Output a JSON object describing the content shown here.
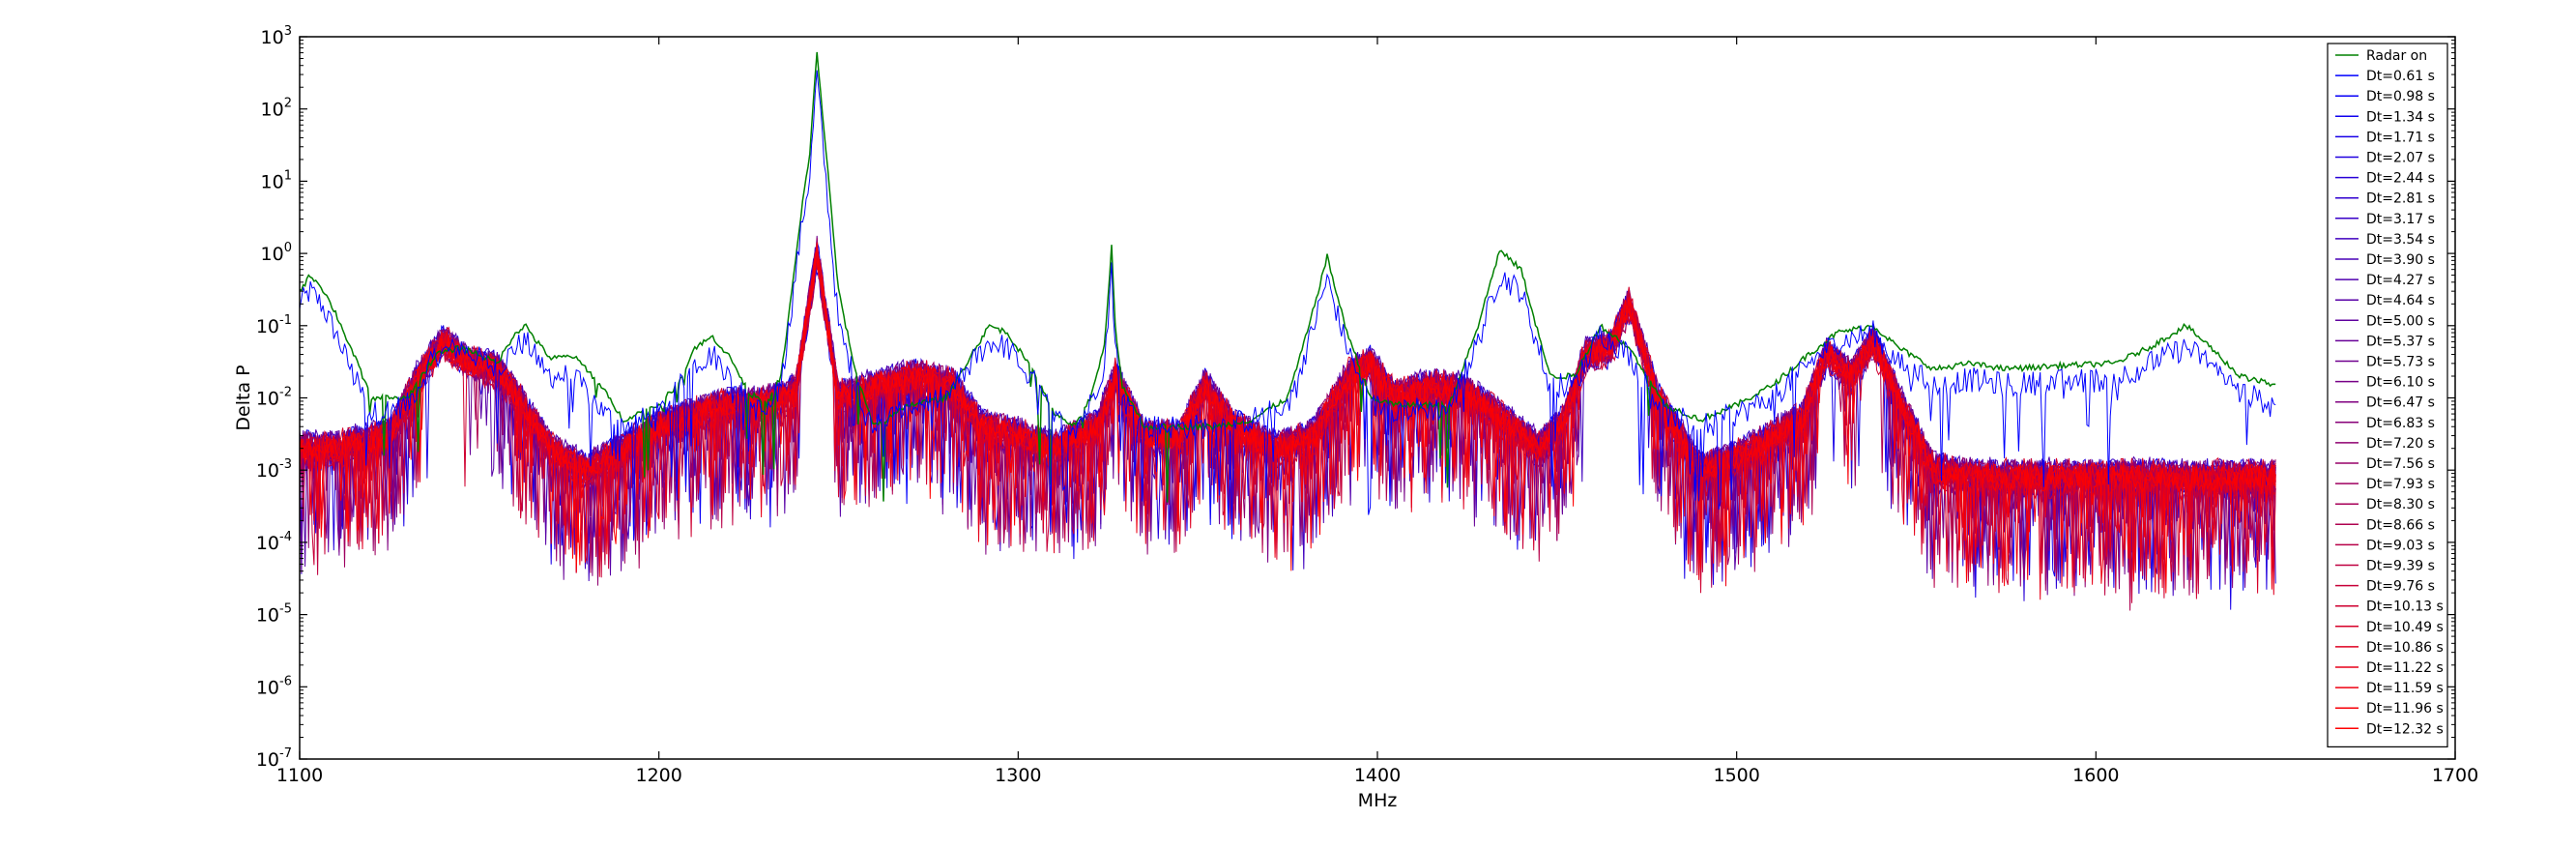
{
  "chart_data": {
    "type": "line",
    "title": "",
    "xlabel": "MHz",
    "ylabel": "Delta P",
    "xlim": [
      1100,
      1700
    ],
    "ylim": [
      1e-07,
      1000
    ],
    "yscale": "log",
    "grid": false,
    "legend_position": "top-right",
    "x_ticks": [
      "1100",
      "1200",
      "1300",
      "1400",
      "1500",
      "1600",
      "1700"
    ],
    "y_ticks": [
      {
        "base": "10",
        "exp": "3"
      },
      {
        "base": "10",
        "exp": "2"
      },
      {
        "base": "10",
        "exp": "1"
      },
      {
        "base": "10",
        "exp": "0"
      },
      {
        "base": "10",
        "exp": "-1"
      },
      {
        "base": "10",
        "exp": "-2"
      },
      {
        "base": "10",
        "exp": "-3"
      },
      {
        "base": "10",
        "exp": "-4"
      },
      {
        "base": "10",
        "exp": "-5"
      },
      {
        "base": "10",
        "exp": "-6"
      },
      {
        "base": "10",
        "exp": "-7"
      }
    ],
    "data_x_range": [
      1100,
      1650
    ],
    "colors": {
      "radar": "#008000",
      "start": "#0000ff",
      "end": "#ff0000"
    },
    "radar_on": {
      "name": "Radar on",
      "x": [
        1100,
        1103,
        1106,
        1110,
        1115,
        1120,
        1130,
        1138,
        1145,
        1150,
        1155,
        1160,
        1163,
        1166,
        1170,
        1176,
        1180,
        1185,
        1190,
        1200,
        1205,
        1210,
        1215,
        1220,
        1225,
        1230,
        1234,
        1237,
        1240,
        1242,
        1244,
        1246,
        1250,
        1255,
        1260,
        1270,
        1280,
        1287,
        1292,
        1297,
        1305,
        1310,
        1316,
        1320,
        1324,
        1326,
        1327,
        1329,
        1335,
        1345,
        1355,
        1365,
        1375,
        1381,
        1386,
        1391,
        1398,
        1405,
        1420,
        1428,
        1434,
        1440,
        1448,
        1455,
        1462,
        1470,
        1480,
        1490,
        1500,
        1510,
        1520,
        1528,
        1538,
        1545,
        1555,
        1565,
        1575,
        1590,
        1605,
        1615,
        1625,
        1632,
        1640,
        1650
      ],
      "values": [
        0.3,
        0.5,
        0.35,
        0.15,
        0.04,
        0.01,
        0.01,
        0.04,
        0.05,
        0.04,
        0.03,
        0.08,
        0.1,
        0.06,
        0.035,
        0.038,
        0.025,
        0.012,
        0.005,
        0.008,
        0.015,
        0.05,
        0.07,
        0.035,
        0.012,
        0.008,
        0.02,
        0.3,
        5,
        25,
        600,
        50,
        0.3,
        0.02,
        0.004,
        0.008,
        0.01,
        0.04,
        0.1,
        0.08,
        0.02,
        0.006,
        0.004,
        0.01,
        0.05,
        1.2,
        0.1,
        0.015,
        0.004,
        0.004,
        0.004,
        0.005,
        0.01,
        0.1,
        0.9,
        0.1,
        0.01,
        0.008,
        0.008,
        0.1,
        1.1,
        0.6,
        0.02,
        0.02,
        0.1,
        0.05,
        0.008,
        0.005,
        0.008,
        0.015,
        0.04,
        0.08,
        0.1,
        0.05,
        0.025,
        0.03,
        0.025,
        0.028,
        0.03,
        0.05,
        0.1,
        0.05,
        0.02,
        0.015
      ]
    },
    "series_labels": [
      "Dt=0.61 s",
      "Dt=0.98 s",
      "Dt=1.34 s",
      "Dt=1.71 s",
      "Dt=2.07 s",
      "Dt=2.44 s",
      "Dt=2.81 s",
      "Dt=3.17 s",
      "Dt=3.54 s",
      "Dt=3.90 s",
      "Dt=4.27 s",
      "Dt=4.64 s",
      "Dt=5.00 s",
      "Dt=5.37 s",
      "Dt=5.73 s",
      "Dt=6.10 s",
      "Dt=6.47 s",
      "Dt=6.83 s",
      "Dt=7.20 s",
      "Dt=7.56 s",
      "Dt=7.93 s",
      "Dt=8.30 s",
      "Dt=8.66 s",
      "Dt=9.03 s",
      "Dt=9.39 s",
      "Dt=9.76 s",
      "Dt=10.13 s",
      "Dt=10.49 s",
      "Dt=10.86 s",
      "Dt=11.22 s",
      "Dt=11.59 s",
      "Dt=11.96 s",
      "Dt=12.32 s"
    ],
    "dt_first": {
      "name": "Dt=0.61 s",
      "x": [
        1100,
        1103,
        1106,
        1110,
        1115,
        1120,
        1130,
        1138,
        1145,
        1150,
        1155,
        1160,
        1163,
        1166,
        1170,
        1176,
        1180,
        1185,
        1190,
        1200,
        1205,
        1210,
        1215,
        1220,
        1225,
        1230,
        1234,
        1237,
        1240,
        1242,
        1244,
        1246,
        1250,
        1255,
        1260,
        1270,
        1280,
        1287,
        1292,
        1297,
        1305,
        1310,
        1316,
        1320,
        1324,
        1326,
        1327,
        1329,
        1335,
        1345,
        1355,
        1365,
        1375,
        1381,
        1386,
        1391,
        1398,
        1405,
        1420,
        1428,
        1434,
        1440,
        1448,
        1455,
        1462,
        1470,
        1480,
        1490,
        1500,
        1510,
        1520,
        1528,
        1538,
        1545,
        1555,
        1565,
        1575,
        1590,
        1605,
        1615,
        1625,
        1632,
        1640,
        1650
      ],
      "values": [
        0.2,
        0.3,
        0.2,
        0.08,
        0.02,
        0.006,
        0.008,
        0.04,
        0.05,
        0.035,
        0.025,
        0.05,
        0.06,
        0.035,
        0.02,
        0.02,
        0.012,
        0.006,
        0.004,
        0.006,
        0.012,
        0.03,
        0.04,
        0.02,
        0.008,
        0.006,
        0.015,
        0.2,
        3,
        12,
        300,
        20,
        0.1,
        0.015,
        0.004,
        0.008,
        0.01,
        0.03,
        0.06,
        0.05,
        0.015,
        0.005,
        0.004,
        0.008,
        0.03,
        0.6,
        0.05,
        0.01,
        0.004,
        0.004,
        0.004,
        0.005,
        0.008,
        0.06,
        0.45,
        0.06,
        0.008,
        0.007,
        0.007,
        0.06,
        0.5,
        0.3,
        0.015,
        0.015,
        0.08,
        0.04,
        0.006,
        0.004,
        0.006,
        0.01,
        0.03,
        0.06,
        0.08,
        0.03,
        0.015,
        0.018,
        0.015,
        0.017,
        0.018,
        0.03,
        0.05,
        0.03,
        0.012,
        0.008
      ]
    },
    "dt_typical": {
      "description_free": true,
      "x": [
        1100,
        1110,
        1125,
        1133,
        1140,
        1147,
        1155,
        1162,
        1170,
        1180,
        1190,
        1200,
        1210,
        1218,
        1228,
        1238,
        1244,
        1250,
        1262,
        1272,
        1282,
        1290,
        1300,
        1310,
        1322,
        1327,
        1335,
        1345,
        1352,
        1360,
        1372,
        1382,
        1392,
        1398,
        1405,
        1415,
        1425,
        1435,
        1445,
        1452,
        1458,
        1465,
        1470,
        1478,
        1490,
        1500,
        1510,
        1518,
        1525,
        1532,
        1538,
        1545,
        1555,
        1570,
        1590,
        1610,
        1630,
        1650
      ],
      "values": [
        0.002,
        0.002,
        0.003,
        0.02,
        0.06,
        0.03,
        0.025,
        0.008,
        0.002,
        0.001,
        0.002,
        0.004,
        0.006,
        0.008,
        0.008,
        0.012,
        1.0,
        0.01,
        0.015,
        0.02,
        0.015,
        0.004,
        0.003,
        0.002,
        0.004,
        0.02,
        0.003,
        0.003,
        0.015,
        0.004,
        0.002,
        0.003,
        0.02,
        0.03,
        0.01,
        0.015,
        0.012,
        0.005,
        0.002,
        0.005,
        0.04,
        0.05,
        0.2,
        0.01,
        0.001,
        0.0015,
        0.003,
        0.005,
        0.04,
        0.02,
        0.06,
        0.01,
        0.001,
        0.0008,
        0.0008,
        0.0008,
        0.0008,
        0.0008
      ]
    }
  }
}
